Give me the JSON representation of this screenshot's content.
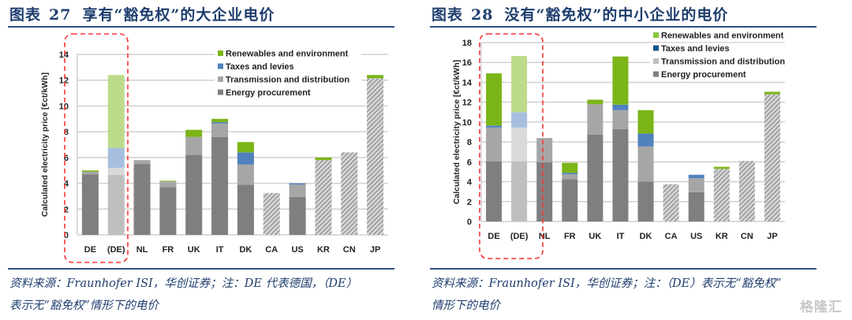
{
  "figures": [
    {
      "title_prefix": "图表",
      "title_number": "27",
      "title_text": "享有“豁免权”的大企业电价",
      "source_line1": "资料来源：Fraunhofer ISI，华创证券；注：DE 代表德国，（DE）",
      "source_line2": "表示无“豁免权”情形下的电价"
    },
    {
      "title_prefix": "图表",
      "title_number": "28",
      "title_text": "没有“豁免权”的中小企业的电价",
      "source_line1": "资料来源：Fraunhofer ISI，华创证券；注：（DE）表示无“豁免权”",
      "source_line2": "情形下的电价"
    }
  ],
  "watermark": "格隆汇",
  "colors": {
    "energy": "#7f7f7f",
    "transmission": "#a6a6a6",
    "renewables": "#7cb518",
    "taxes": "#4f81bd",
    "de_energy": "#bfbfbf",
    "de_transmission": "#d9d9d9",
    "de_taxes": "#a7bfdf",
    "de_renewables": "#bcdb8a",
    "highlight": "#ff3333",
    "grid": "#d0d0d0"
  },
  "chart_data": [
    {
      "type": "bar",
      "stacked": true,
      "title": "享有“豁免权”的大企业电价",
      "xlabel": "",
      "ylabel": "Calculated electricity price [€ct/kWh]",
      "ylim": [
        0,
        14
      ],
      "yticks": [
        0,
        2,
        4,
        6,
        8,
        10,
        12,
        14
      ],
      "grid": true,
      "legend_position": "top-right",
      "categories": [
        "DE",
        "(DE)",
        "NL",
        "FR",
        "UK",
        "IT",
        "DK",
        "CA",
        "US",
        "KR",
        "CN",
        "JP"
      ],
      "hatched_categories": [
        "CA",
        "KR",
        "CN",
        "JP"
      ],
      "highlighted_categories": [
        "DE",
        "(DE)"
      ],
      "legend": [
        "Renewables and environment",
        "Taxes and levies",
        "Transmission and distribution",
        "Energy procurement"
      ],
      "series": [
        {
          "name": "Energy procurement",
          "key": "energy",
          "values": [
            4.7,
            4.65,
            5.5,
            3.7,
            6.2,
            7.6,
            3.9,
            3.25,
            2.95,
            5.8,
            6.4,
            12.15
          ]
        },
        {
          "name": "Transmission and distribution",
          "key": "transmission",
          "values": [
            0.2,
            0.55,
            0.3,
            0.45,
            1.4,
            1.05,
            1.55,
            0,
            0.95,
            0,
            0,
            0
          ]
        },
        {
          "name": "Taxes and levies",
          "key": "taxes",
          "values": [
            0.0,
            1.55,
            0,
            0,
            0,
            0.1,
            0.95,
            0,
            0.1,
            0,
            0,
            0
          ]
        },
        {
          "name": "Renewables and environment",
          "key": "renewables",
          "values": [
            0.1,
            5.65,
            0,
            0.05,
            0.55,
            0.25,
            0.8,
            0,
            0,
            0.2,
            0,
            0.25
          ]
        }
      ]
    },
    {
      "type": "bar",
      "stacked": true,
      "title": "没有“豁免权”的中小企业的电价",
      "xlabel": "",
      "ylabel": "Calculated electricity price [€ct/kWh]",
      "ylim": [
        0,
        18
      ],
      "yticks": [
        0,
        2,
        4,
        6,
        8,
        10,
        12,
        14,
        16,
        18
      ],
      "grid": true,
      "legend_position": "top-right",
      "categories": [
        "DE",
        "(DE)",
        "NL",
        "FR",
        "UK",
        "IT",
        "DK",
        "CA",
        "US",
        "KR",
        "CN",
        "JP"
      ],
      "hatched_categories": [
        "CA",
        "KR",
        "CN",
        "JP"
      ],
      "highlighted_categories": [
        "DE",
        "(DE)"
      ],
      "legend": [
        "Renewables and environment",
        "Taxes and levies",
        "Transmission and distribution",
        "Energy procurement"
      ],
      "series": [
        {
          "name": "Energy procurement",
          "key": "energy",
          "values": [
            6.05,
            6.05,
            5.95,
            4.25,
            8.75,
            9.3,
            4.0,
            3.75,
            2.95,
            5.3,
            6.1,
            12.8
          ]
        },
        {
          "name": "Transmission and distribution",
          "key": "transmission",
          "values": [
            3.4,
            3.4,
            2.45,
            0.5,
            3.05,
            1.9,
            3.55,
            0,
            1.4,
            0,
            0,
            0
          ]
        },
        {
          "name": "Taxes and levies",
          "key": "taxes",
          "values": [
            0.2,
            1.55,
            0,
            0.15,
            0,
            0.55,
            1.3,
            0,
            0.35,
            0,
            0,
            0
          ]
        },
        {
          "name": "Renewables and environment",
          "key": "renewables",
          "values": [
            5.25,
            5.65,
            0,
            1.0,
            0.45,
            4.85,
            2.35,
            0,
            0,
            0.2,
            0,
            0.25
          ]
        }
      ]
    }
  ]
}
